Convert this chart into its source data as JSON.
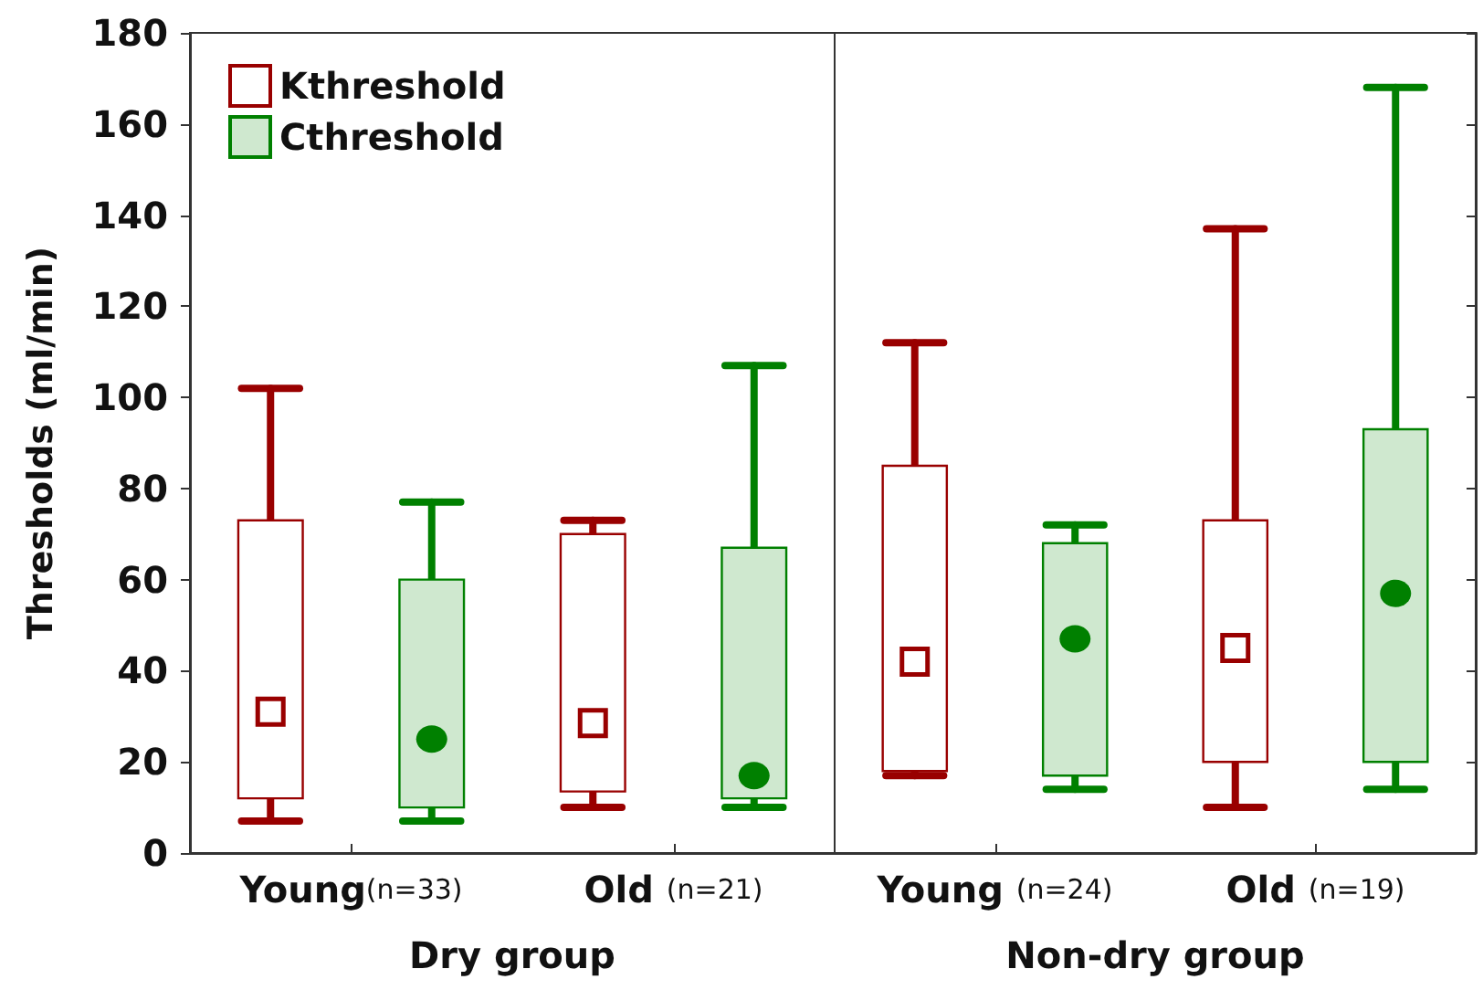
{
  "chart_data": [
    {
      "type": "box",
      "ylabel": "Thresholds (ml/min)",
      "xlabel": "Dry group",
      "categories": [
        "Young(n=33)",
        "Old (n=21)"
      ],
      "ylim": [
        0,
        180
      ],
      "yticks": [
        0,
        20,
        40,
        60,
        80,
        100,
        120,
        140,
        160,
        180
      ],
      "legend": "top left",
      "grid": false,
      "series": [
        {
          "name": "Kthreshold",
          "color": "#990000",
          "marker": "square",
          "boxes": [
            {
              "low": 7,
              "q1": 12,
              "median": 31,
              "q3": 73,
              "high": 102
            },
            {
              "low": 10,
              "q1": 13.5,
              "median": 28.5,
              "q3": 70,
              "high": 73
            }
          ]
        },
        {
          "name": "Cthreshold",
          "color": "#008000",
          "marker": "circle",
          "boxes": [
            {
              "low": 7,
              "q1": 10,
              "median": 25,
              "q3": 60,
              "high": 77
            },
            {
              "low": 10,
              "q1": 12,
              "median": 17,
              "q3": 67,
              "high": 107
            }
          ]
        }
      ]
    },
    {
      "type": "box",
      "xlabel": "Non-dry group",
      "categories": [
        "Young (n=24)",
        "Old (n=19)"
      ],
      "ylim": [
        0,
        180
      ],
      "yticks": [
        0,
        20,
        40,
        60,
        80,
        100,
        120,
        140,
        160,
        180
      ],
      "tick_labels": "x",
      "grid": false,
      "series": [
        {
          "color": "#990000",
          "marker": "square",
          "boxes": [
            {
              "low": 17,
              "q1": 18,
              "median": 42,
              "q3": 85,
              "high": 112
            },
            {
              "low": 10,
              "q1": 20,
              "median": 45,
              "q3": 73,
              "high": 137
            }
          ]
        },
        {
          "color": "#008000",
          "marker": "circle",
          "boxes": [
            {
              "low": 14,
              "q1": 17,
              "median": 47,
              "q3": 68,
              "high": 72
            },
            {
              "low": 14,
              "q1": 20,
              "median": 57,
              "q3": 93,
              "high": 168
            }
          ]
        }
      ]
    }
  ]
}
